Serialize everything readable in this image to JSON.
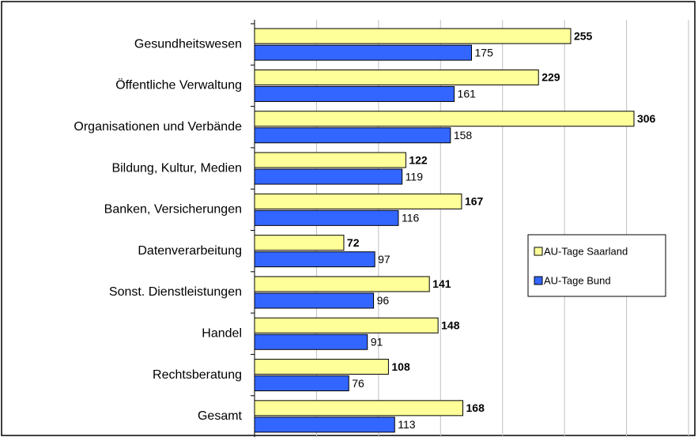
{
  "chart_data": {
    "type": "hbar",
    "categories": [
      "Gesundheitswesen",
      "Öffentliche Verwaltung",
      "Organisationen und Verbände",
      "Bildung, Kultur, Medien",
      "Banken, Versicherungen",
      "Datenverarbeitung",
      "Sonst. Dienstleistungen",
      "Handel",
      "Rechtsberatung",
      "Gesamt"
    ],
    "series": [
      {
        "name": "AU-Tage Saarland",
        "color": "#ffff99",
        "values": [
          255,
          229,
          306,
          122,
          167,
          72,
          141,
          148,
          108,
          168
        ]
      },
      {
        "name": "AU-Tage Bund",
        "color": "#3366ff",
        "values": [
          175,
          161,
          158,
          119,
          116,
          97,
          96,
          91,
          76,
          113
        ]
      }
    ],
    "xlim": [
      0,
      350
    ],
    "xticks": [
      0,
      50,
      100,
      150,
      200,
      250,
      300,
      350
    ],
    "grid": true,
    "legend": "right"
  }
}
